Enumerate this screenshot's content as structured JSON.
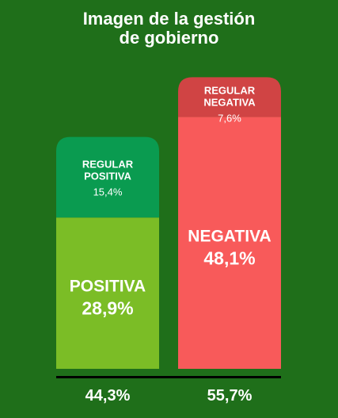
{
  "title_line1": "Imagen de la gestión",
  "title_line2": "de gobierno",
  "chart_data": {
    "type": "bar",
    "stacked": true,
    "bars": [
      {
        "total_label": "44,3%",
        "total": 44.3,
        "segments": [
          {
            "label_line1": "POSITIVA",
            "label_line2": "",
            "value_label": "28,9%",
            "value": 28.9,
            "color": "#7bbd26",
            "emphasis": "large"
          },
          {
            "label_line1": "REGULAR",
            "label_line2": "POSITIVA",
            "value_label": "15,4%",
            "value": 15.4,
            "color": "#0a9b50",
            "emphasis": "small"
          }
        ]
      },
      {
        "total_label": "55,7%",
        "total": 55.7,
        "segments": [
          {
            "label_line1": "NEGATIVA",
            "label_line2": "",
            "value_label": "48,1%",
            "value": 48.1,
            "color": "#f85a5a",
            "emphasis": "large"
          },
          {
            "label_line1": "REGULAR",
            "label_line2": "NEGATIVA",
            "value_label": "7,6%",
            "value": 7.6,
            "color": "#d04444",
            "emphasis": "small"
          }
        ]
      }
    ],
    "baseline_color": "#000000"
  }
}
